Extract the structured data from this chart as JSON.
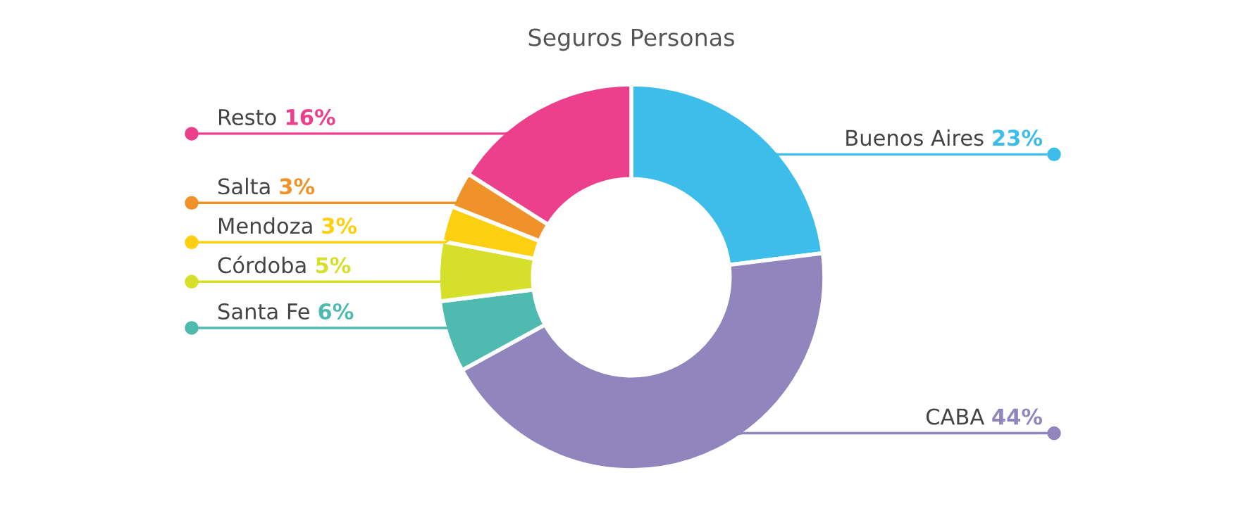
{
  "chart_data": {
    "type": "donut",
    "title": "Seguros Personas",
    "categories": [
      "Buenos Aires",
      "CABA",
      "Santa Fe",
      "Córdoba",
      "Mendoza",
      "Salta",
      "Resto"
    ],
    "values": [
      23,
      44,
      6,
      5,
      3,
      3,
      16
    ],
    "value_labels": [
      "23%",
      "44%",
      "6%",
      "5%",
      "3%",
      "3%",
      "16%"
    ],
    "colors": [
      "#3dbde9",
      "#9185bd",
      "#4fbab0",
      "#d6e02a",
      "#fccf10",
      "#f0922a",
      "#ec3f8c"
    ]
  }
}
